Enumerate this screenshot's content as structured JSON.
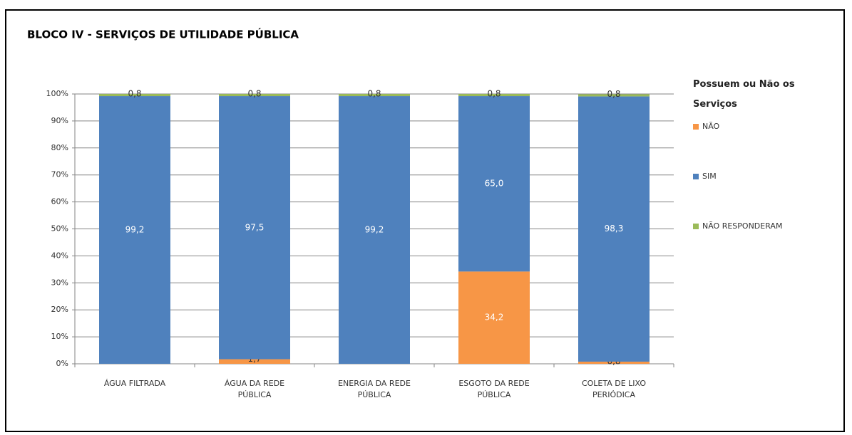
{
  "chart_data": {
    "type": "stacked_bar",
    "title": "BLOCO IV - SERVIÇOS DE UTILIDADE PÚBLICA",
    "legend_title": "Possuem ou Não os Serviços",
    "legend_position": "right",
    "grid": true,
    "categories": [
      "ÁGUA FILTRADA",
      "ÁGUA DA REDE PÚBLICA",
      "ENERGIA DA REDE PÚBLICA",
      "ESGOTO DA REDE PÚBLICA",
      "COLETA DE LIXO PERIÓDICA"
    ],
    "series": [
      {
        "name": "NÃO",
        "color": "#f79646",
        "values": [
          0,
          1.7,
          0,
          34.2,
          0.8
        ],
        "value_labels": [
          null,
          "1,7",
          null,
          "34,2",
          "0,8"
        ]
      },
      {
        "name": "SIM",
        "color": "#4f81bd",
        "values": [
          99.2,
          97.5,
          99.2,
          65.0,
          98.3
        ],
        "value_labels": [
          "99,2",
          "97,5",
          "99,2",
          "65,0",
          "98,3"
        ]
      },
      {
        "name": "NÃO RESPONDERAM",
        "color": "#9bbb59",
        "values": [
          0.8,
          0.8,
          0.8,
          0.8,
          0.8
        ],
        "value_labels": [
          "0,8",
          "0,8",
          "0,8",
          "0,8",
          "0,8"
        ]
      }
    ],
    "ylim": [
      0,
      100
    ],
    "yticks": [
      {
        "value": 0,
        "label": "0%"
      },
      {
        "value": 10,
        "label": "10%"
      },
      {
        "value": 20,
        "label": "20%"
      },
      {
        "value": 30,
        "label": "30%"
      },
      {
        "value": 40,
        "label": "40%"
      },
      {
        "value": 50,
        "label": "50%"
      },
      {
        "value": 60,
        "label": "60%"
      },
      {
        "value": 70,
        "label": "70%"
      },
      {
        "value": 80,
        "label": "80%"
      },
      {
        "value": 90,
        "label": "90%"
      },
      {
        "value": 100,
        "label": "100%"
      }
    ]
  }
}
